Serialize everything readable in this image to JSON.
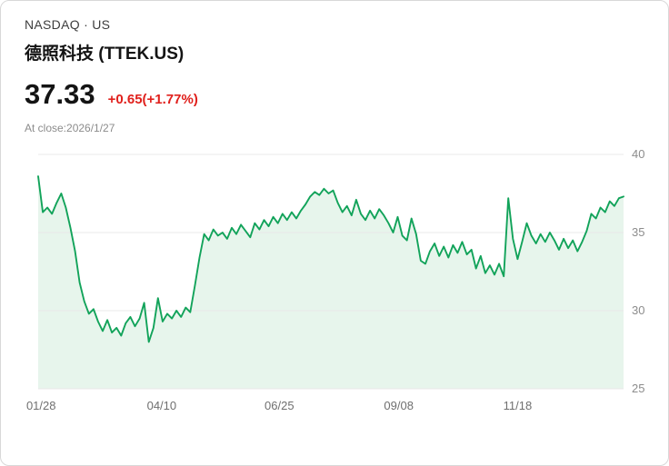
{
  "header": {
    "exchange": "NASDAQ · US",
    "title": "德照科技 (TTEK.US)"
  },
  "quote": {
    "price": "37.33",
    "change": "+0.65(+1.77%)",
    "change_color": "#e0201c",
    "as_of": "At close:2026/1/27"
  },
  "chart_data": {
    "type": "line",
    "title": "",
    "xlabel": "",
    "ylabel": "",
    "ylim": [
      25,
      40
    ],
    "y_ticks": [
      40,
      35,
      30,
      25
    ],
    "x_ticks": [
      {
        "label": "01/28",
        "pos": 0.005
      },
      {
        "label": "04/10",
        "pos": 0.211
      },
      {
        "label": "06/25",
        "pos": 0.412
      },
      {
        "label": "09/08",
        "pos": 0.616
      },
      {
        "label": "11/18",
        "pos": 0.819
      }
    ],
    "grid": "horizontal",
    "legend": "none",
    "line_color": "#12A35A",
    "fill_color": "#E7F5EC",
    "grid_color": "#E8E8E8",
    "axis_label_color": "#8C8C8C",
    "values": [
      38.6,
      36.3,
      36.6,
      36.2,
      36.9,
      37.5,
      36.6,
      35.3,
      33.8,
      31.8,
      30.6,
      29.8,
      30.1,
      29.3,
      28.7,
      29.4,
      28.6,
      28.9,
      28.4,
      29.2,
      29.6,
      29.0,
      29.5,
      30.5,
      28.0,
      28.9,
      30.8,
      29.3,
      29.8,
      29.5,
      30.0,
      29.6,
      30.2,
      29.9,
      31.6,
      33.4,
      34.9,
      34.5,
      35.2,
      34.8,
      35.0,
      34.6,
      35.3,
      34.9,
      35.5,
      35.1,
      34.7,
      35.6,
      35.2,
      35.8,
      35.4,
      36.0,
      35.6,
      36.2,
      35.8,
      36.3,
      35.9,
      36.4,
      36.8,
      37.3,
      37.6,
      37.4,
      37.8,
      37.5,
      37.7,
      36.9,
      36.3,
      36.7,
      36.1,
      37.1,
      36.2,
      35.8,
      36.4,
      35.9,
      36.5,
      36.1,
      35.6,
      35.0,
      36.0,
      34.8,
      34.5,
      35.9,
      34.9,
      33.2,
      33.0,
      33.8,
      34.3,
      33.5,
      34.1,
      33.4,
      34.2,
      33.7,
      34.4,
      33.6,
      33.9,
      32.7,
      33.5,
      32.4,
      32.9,
      32.3,
      33.0,
      32.2,
      37.2,
      34.6,
      33.3,
      34.4,
      35.6,
      34.8,
      34.3,
      34.9,
      34.4,
      35.0,
      34.5,
      33.9,
      34.6,
      34.0,
      34.5,
      33.8,
      34.4,
      35.1,
      36.2,
      35.9,
      36.6,
      36.3,
      37.0,
      36.7,
      37.2,
      37.3
    ]
  }
}
